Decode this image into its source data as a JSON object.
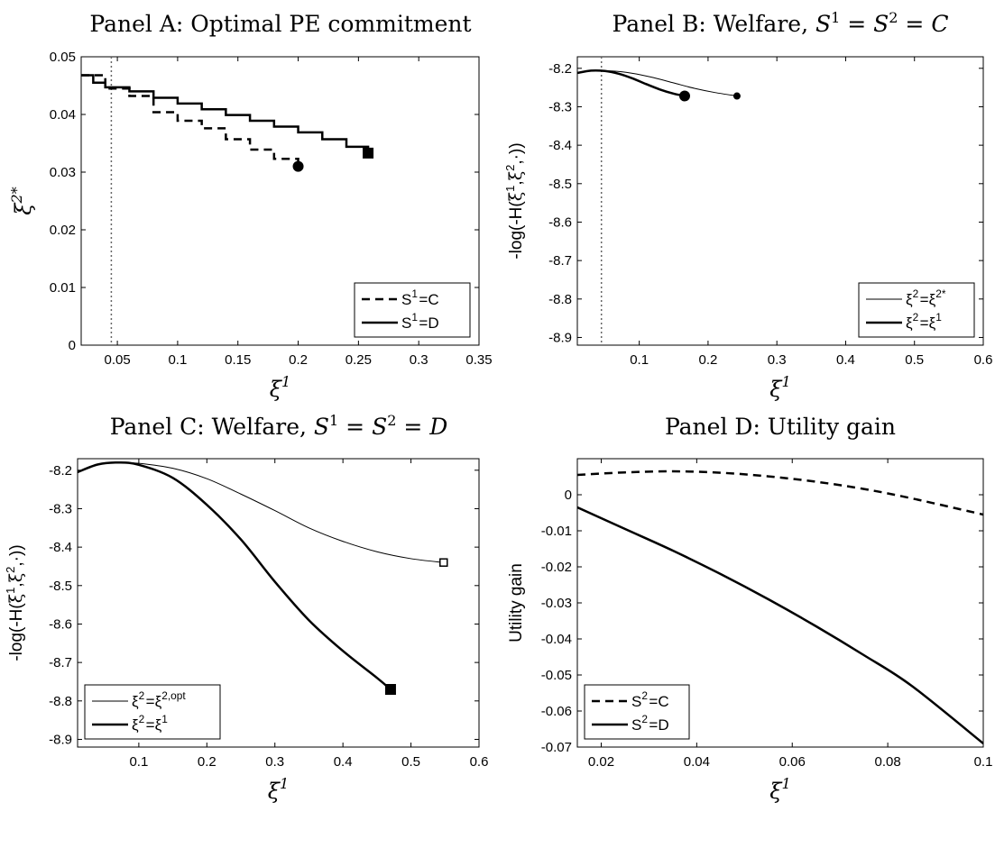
{
  "chart_data": [
    {
      "id": "A",
      "type": "line",
      "title": "Panel A: Optimal PE commitment",
      "xlabel": "ξ1",
      "ylabel": "ξ2*",
      "xlim": [
        0.02,
        0.35
      ],
      "ylim": [
        0,
        0.05
      ],
      "xticks": [
        0.05,
        0.1,
        0.15,
        0.2,
        0.25,
        0.3,
        0.35
      ],
      "xtick_labels": [
        "0.05",
        "0.1",
        "0.15",
        "0.2",
        "0.25",
        "0.3",
        "0.35"
      ],
      "yticks": [
        0,
        0.01,
        0.02,
        0.03,
        0.04,
        0.05
      ],
      "ytick_labels": [
        "0",
        "0.01",
        "0.02",
        "0.03",
        "0.04",
        "0.05"
      ],
      "vline": 0.045,
      "grid": false,
      "legend": "bottom-right",
      "series": [
        {
          "name": "S1=C",
          "style": "dashed",
          "width": "thick",
          "step": true,
          "x": [
            0.02,
            0.04,
            0.06,
            0.08,
            0.1,
            0.12,
            0.14,
            0.16,
            0.18,
            0.2
          ],
          "y": [
            0.0468,
            0.0445,
            0.0432,
            0.0404,
            0.0389,
            0.0376,
            0.0357,
            0.0339,
            0.0323,
            0.031
          ],
          "end_marker": "circle"
        },
        {
          "name": "S1=D",
          "style": "solid",
          "width": "thick",
          "step": true,
          "x": [
            0.02,
            0.03,
            0.04,
            0.06,
            0.08,
            0.1,
            0.12,
            0.14,
            0.16,
            0.18,
            0.2,
            0.22,
            0.24,
            0.258
          ],
          "y": [
            0.0468,
            0.0455,
            0.0447,
            0.044,
            0.0429,
            0.0419,
            0.0409,
            0.0399,
            0.0389,
            0.0379,
            0.0369,
            0.0357,
            0.0344,
            0.0333
          ],
          "end_marker": "square"
        }
      ]
    },
    {
      "id": "B",
      "type": "line",
      "title": "Panel B: Welfare, S1 = S2 = C",
      "xlabel": "ξ1",
      "ylabel": "-log(-H(ξ1,ξ2,·))",
      "xlim": [
        0.01,
        0.6
      ],
      "ylim": [
        -8.92,
        -8.17
      ],
      "xticks": [
        0.1,
        0.2,
        0.3,
        0.4,
        0.5,
        0.6
      ],
      "xtick_labels": [
        "0.1",
        "0.2",
        "0.3",
        "0.4",
        "0.5",
        "0.6"
      ],
      "yticks": [
        -8.9,
        -8.8,
        -8.7,
        -8.6,
        -8.5,
        -8.4,
        -8.3,
        -8.2
      ],
      "ytick_labels": [
        "-8.9",
        "-8.8",
        "-8.7",
        "-8.6",
        "-8.5",
        "-8.4",
        "-8.3",
        "-8.2"
      ],
      "vline": 0.045,
      "grid": false,
      "legend": "bottom-right",
      "series": [
        {
          "name": "ξ2=ξ2*",
          "style": "solid",
          "width": "thin",
          "x": [
            0.01,
            0.03,
            0.06,
            0.09,
            0.12,
            0.15,
            0.18,
            0.21,
            0.242
          ],
          "y": [
            -8.212,
            -8.207,
            -8.207,
            -8.213,
            -8.224,
            -8.238,
            -8.252,
            -8.263,
            -8.272
          ],
          "end_marker": "circle-small"
        },
        {
          "name": "ξ2=ξ1",
          "style": "solid",
          "width": "thick",
          "x": [
            0.01,
            0.03,
            0.05,
            0.07,
            0.09,
            0.11,
            0.13,
            0.15,
            0.166
          ],
          "y": [
            -8.212,
            -8.206,
            -8.207,
            -8.214,
            -8.226,
            -8.241,
            -8.255,
            -8.266,
            -8.272
          ],
          "end_marker": "circle"
        }
      ]
    },
    {
      "id": "C",
      "type": "line",
      "title": "Panel C: Welfare, S1 = S2 = D",
      "xlabel": "ξ1",
      "ylabel": "-log(-H(ξ1,ξ2,·))",
      "xlim": [
        0.01,
        0.6
      ],
      "ylim": [
        -8.92,
        -8.17
      ],
      "xticks": [
        0.1,
        0.2,
        0.3,
        0.4,
        0.5,
        0.6
      ],
      "xtick_labels": [
        "0.1",
        "0.2",
        "0.3",
        "0.4",
        "0.5",
        "0.6"
      ],
      "yticks": [
        -8.9,
        -8.8,
        -8.7,
        -8.6,
        -8.5,
        -8.4,
        -8.3,
        -8.2
      ],
      "ytick_labels": [
        "-8.9",
        "-8.8",
        "-8.7",
        "-8.6",
        "-8.5",
        "-8.4",
        "-8.3",
        "-8.2"
      ],
      "grid": false,
      "legend": "bottom-left",
      "series": [
        {
          "name": "ξ2=ξ2,opt",
          "style": "solid",
          "width": "thin",
          "x": [
            0.01,
            0.04,
            0.07,
            0.1,
            0.15,
            0.2,
            0.25,
            0.3,
            0.35,
            0.4,
            0.45,
            0.5,
            0.548
          ],
          "y": [
            -8.205,
            -8.185,
            -8.18,
            -8.182,
            -8.195,
            -8.222,
            -8.262,
            -8.305,
            -8.35,
            -8.385,
            -8.412,
            -8.43,
            -8.44
          ],
          "end_marker": "square-small"
        },
        {
          "name": "ξ2=ξ1",
          "style": "solid",
          "width": "thick",
          "x": [
            0.01,
            0.04,
            0.07,
            0.1,
            0.15,
            0.2,
            0.25,
            0.3,
            0.35,
            0.4,
            0.45,
            0.47
          ],
          "y": [
            -8.205,
            -8.185,
            -8.18,
            -8.186,
            -8.22,
            -8.29,
            -8.38,
            -8.49,
            -8.59,
            -8.67,
            -8.74,
            -8.77
          ],
          "end_marker": "square"
        }
      ]
    },
    {
      "id": "D",
      "type": "line",
      "title": "Panel D: Utility gain",
      "xlabel": "ξ1",
      "ylabel": "Utility gain",
      "xlim": [
        0.015,
        0.1
      ],
      "ylim": [
        -0.07,
        0.01
      ],
      "xticks": [
        0.02,
        0.04,
        0.06,
        0.08,
        0.1
      ],
      "xtick_labels": [
        "0.02",
        "0.04",
        "0.06",
        "0.08",
        "0.1"
      ],
      "yticks": [
        -0.07,
        -0.06,
        -0.05,
        -0.04,
        -0.03,
        -0.02,
        -0.01,
        0
      ],
      "ytick_labels": [
        "-0.07",
        "-0.06",
        "-0.05",
        "-0.04",
        "-0.03",
        "-0.02",
        "-0.01",
        "0"
      ],
      "grid": false,
      "legend": "bottom-left",
      "series": [
        {
          "name": "S2=C",
          "style": "dashed",
          "width": "thick",
          "x": [
            0.015,
            0.025,
            0.035,
            0.045,
            0.055,
            0.065,
            0.075,
            0.085,
            0.1
          ],
          "y": [
            0.0055,
            0.0062,
            0.0065,
            0.0061,
            0.0051,
            0.0036,
            0.0016,
            -0.001,
            -0.0055
          ]
        },
        {
          "name": "S2=D",
          "style": "solid",
          "width": "thick",
          "x": [
            0.015,
            0.025,
            0.035,
            0.045,
            0.055,
            0.065,
            0.075,
            0.085,
            0.1
          ],
          "y": [
            -0.0035,
            -0.0095,
            -0.0155,
            -0.022,
            -0.029,
            -0.0365,
            -0.0445,
            -0.053,
            -0.069
          ]
        }
      ]
    }
  ]
}
